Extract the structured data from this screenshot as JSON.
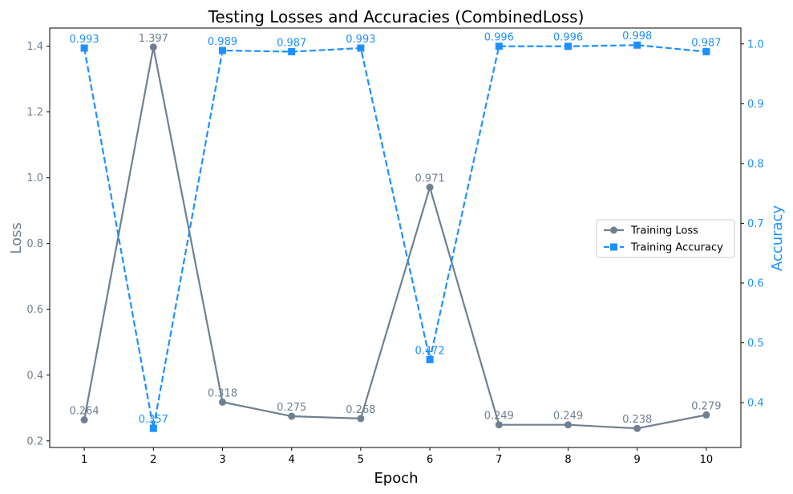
{
  "chart_data": {
    "type": "line",
    "title": "Testing Losses and Accuracies (CombinedLoss)",
    "xlabel": "Epoch",
    "ylabel_left": "Loss",
    "ylabel_right": "Accuracy",
    "x": [
      1,
      2,
      3,
      4,
      5,
      6,
      7,
      8,
      9,
      10
    ],
    "x_ticks": [
      "1",
      "2",
      "3",
      "4",
      "5",
      "6",
      "7",
      "8",
      "9",
      "10"
    ],
    "ylim_left": [
      0.18,
      1.455
    ],
    "yticks_left": [
      "0.2",
      "0.4",
      "0.6",
      "0.8",
      "1.0",
      "1.2",
      "1.4"
    ],
    "ylim_right": [
      0.325,
      1.0265
    ],
    "yticks_right": [
      "0.4",
      "0.5",
      "0.6",
      "0.7",
      "0.8",
      "0.9",
      "1.0"
    ],
    "grid": false,
    "legend_position": "center-right",
    "series": [
      {
        "name": "Training Loss",
        "axis": "left",
        "color": "#708090",
        "marker": "circle",
        "linestyle": "solid",
        "values": [
          0.264,
          1.397,
          0.318,
          0.275,
          0.268,
          0.971,
          0.249,
          0.249,
          0.238,
          0.279
        ],
        "labels": [
          "0.264",
          "1.397",
          "0.318",
          "0.275",
          "0.268",
          "0.971",
          "0.249",
          "0.249",
          "0.238",
          "0.279"
        ]
      },
      {
        "name": "Training Accuracy",
        "axis": "right",
        "color": "#1E90FF",
        "marker": "square",
        "linestyle": "dashed",
        "values": [
          0.993,
          0.357,
          0.989,
          0.987,
          0.993,
          0.472,
          0.996,
          0.996,
          0.998,
          0.987
        ],
        "labels": [
          "0.993",
          "0.357",
          "0.989",
          "0.987",
          "0.993",
          "0.472",
          "0.996",
          "0.996",
          "0.998",
          "0.987"
        ]
      }
    ]
  }
}
